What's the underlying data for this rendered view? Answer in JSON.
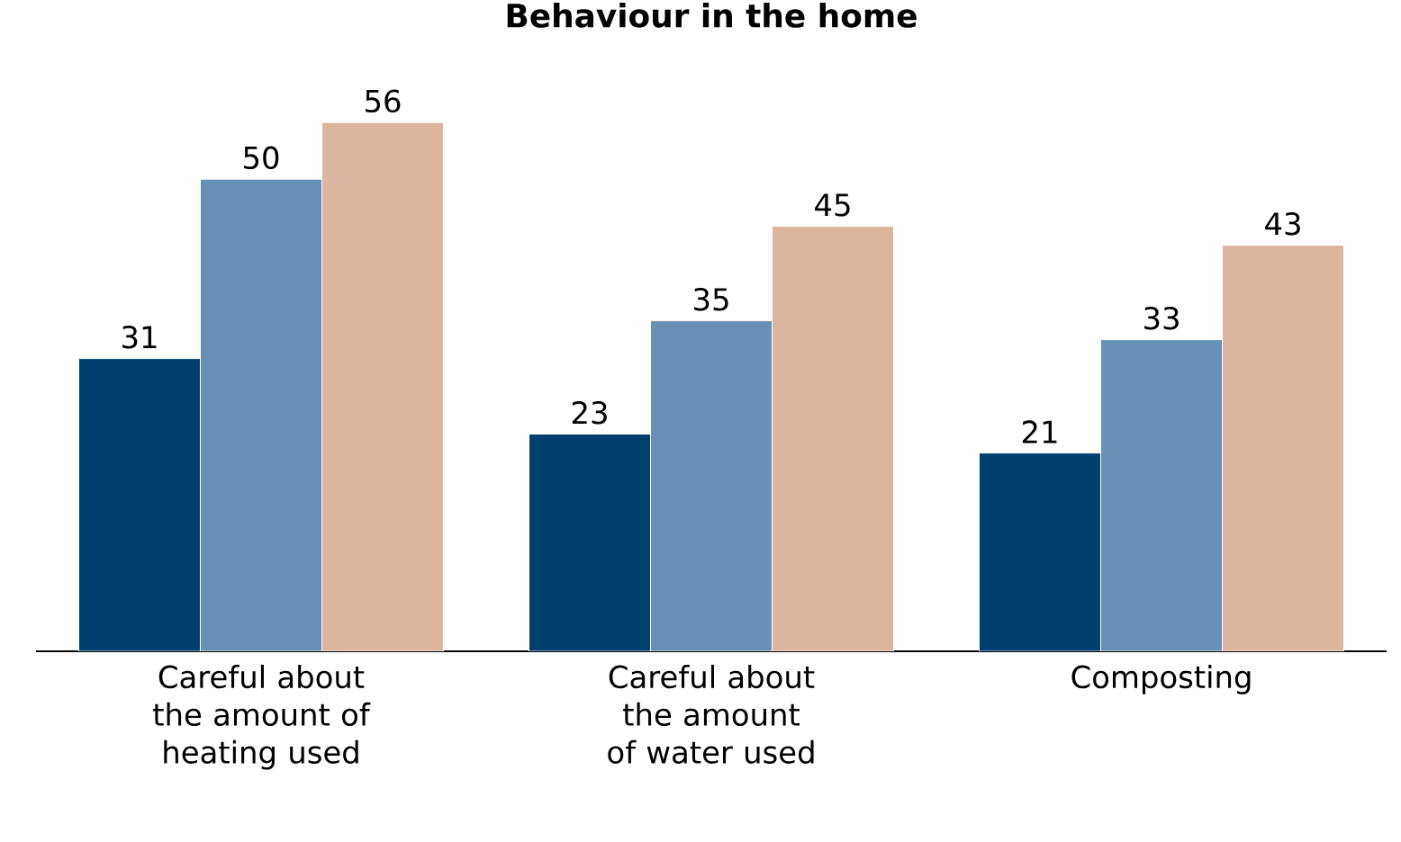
{
  "chart_data": {
    "type": "bar",
    "title": "Behaviour in the home",
    "categories": [
      "Careful about the amount of heating used",
      "Careful about the amount of water used",
      "Composting"
    ],
    "series": [
      {
        "color": "#003f6e",
        "values": [
          31,
          23,
          21
        ]
      },
      {
        "color": "#6690b4",
        "values": [
          50,
          35,
          33
        ]
      },
      {
        "color": "#dbb59d",
        "values": [
          56,
          45,
          43
        ]
      }
    ],
    "data_labels": true
  }
}
